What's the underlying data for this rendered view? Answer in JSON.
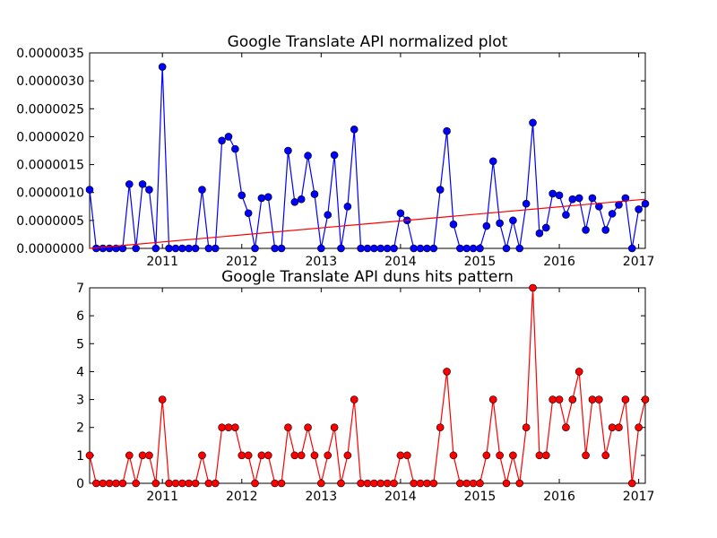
{
  "chart_data": [
    {
      "type": "line",
      "title": "Google Translate API normalized plot",
      "xlabel": "",
      "ylabel": "",
      "x_ticks": [
        "2011",
        "2012",
        "2013",
        "2014",
        "2015",
        "2016",
        "2017"
      ],
      "y_ticks": [
        "0.0000000",
        "0.0000005",
        "0.0000010",
        "0.0000015",
        "0.0000020",
        "0.0000025",
        "0.0000030",
        "0.0000035"
      ],
      "ylim": [
        0,
        3.5e-06
      ],
      "xlim": [
        "2010-02",
        "2017-02"
      ],
      "grid": false,
      "series": [
        {
          "color": "#0000ff",
          "marker": "circle",
          "x": [
            "2010-02",
            "2010-03",
            "2010-04",
            "2010-05",
            "2010-06",
            "2010-07",
            "2010-08",
            "2010-09",
            "2010-10",
            "2010-11",
            "2010-12",
            "2011-01",
            "2011-02",
            "2011-03",
            "2011-04",
            "2011-05",
            "2011-06",
            "2011-07",
            "2011-08",
            "2011-09",
            "2011-10",
            "2011-11",
            "2011-12",
            "2012-01",
            "2012-02",
            "2012-03",
            "2012-04",
            "2012-05",
            "2012-06",
            "2012-07",
            "2012-08",
            "2012-09",
            "2012-10",
            "2012-11",
            "2012-12",
            "2013-01",
            "2013-02",
            "2013-03",
            "2013-04",
            "2013-05",
            "2013-06",
            "2013-07",
            "2013-08",
            "2013-09",
            "2013-10",
            "2013-11",
            "2013-12",
            "2014-01",
            "2014-02",
            "2014-03",
            "2014-04",
            "2014-05",
            "2014-06",
            "2014-07",
            "2014-08",
            "2014-09",
            "2014-10",
            "2014-11",
            "2014-12",
            "2015-01",
            "2015-02",
            "2015-03",
            "2015-04",
            "2015-05",
            "2015-06",
            "2015-07",
            "2015-08",
            "2015-09",
            "2015-10",
            "2015-11",
            "2015-12",
            "2016-01",
            "2016-02",
            "2016-03",
            "2016-04",
            "2016-05",
            "2016-06",
            "2016-07",
            "2016-08",
            "2016-09",
            "2016-10",
            "2016-11",
            "2016-12",
            "2017-01",
            "2017-02"
          ],
          "y": [
            1.05e-06,
            0,
            0,
            0,
            0,
            0,
            1.15e-06,
            0,
            1.15e-06,
            1.05e-06,
            0,
            3.25e-06,
            0,
            0,
            0,
            0,
            0,
            1.05e-06,
            0,
            0,
            1.93e-06,
            2e-06,
            1.78e-06,
            9.5e-07,
            6.3e-07,
            0,
            9e-07,
            9.2e-07,
            0,
            0,
            1.75e-06,
            8.3e-07,
            8.8e-07,
            1.66e-06,
            9.7e-07,
            0,
            6e-07,
            1.67e-06,
            0,
            7.5e-07,
            2.13e-06,
            0,
            0,
            0,
            0,
            0,
            0,
            6.3e-07,
            5e-07,
            0,
            0,
            0,
            0,
            1.05e-06,
            2.1e-06,
            4.3e-07,
            0,
            0,
            0,
            0,
            4e-07,
            1.56e-06,
            4.5e-07,
            0,
            5e-07,
            0,
            8e-07,
            2.25e-06,
            2.7e-07,
            3.7e-07,
            9.8e-07,
            9.5e-07,
            6e-07,
            8.8e-07,
            9e-07,
            3.3e-07,
            9e-07,
            7.5e-07,
            3.3e-07,
            6.2e-07,
            7.8e-07,
            9e-07,
            0,
            7e-07,
            8e-07
          ]
        },
        {
          "color": "#ff0000",
          "type": "trend-line",
          "x": [
            "2010-02",
            "2017-02"
          ],
          "y": [
            0,
            8.8e-07
          ]
        }
      ]
    },
    {
      "type": "line",
      "title": "Google Translate API duns hits pattern",
      "xlabel": "",
      "ylabel": "",
      "x_ticks": [
        "2011",
        "2012",
        "2013",
        "2014",
        "2015",
        "2016",
        "2017"
      ],
      "y_ticks": [
        "0",
        "1",
        "2",
        "3",
        "4",
        "5",
        "6",
        "7"
      ],
      "ylim": [
        0,
        7
      ],
      "xlim": [
        "2010-02",
        "2017-02"
      ],
      "grid": false,
      "series": [
        {
          "color": "#ff0000",
          "marker": "circle",
          "x": [
            "2010-02",
            "2010-03",
            "2010-04",
            "2010-05",
            "2010-06",
            "2010-07",
            "2010-08",
            "2010-09",
            "2010-10",
            "2010-11",
            "2010-12",
            "2011-01",
            "2011-02",
            "2011-03",
            "2011-04",
            "2011-05",
            "2011-06",
            "2011-07",
            "2011-08",
            "2011-09",
            "2011-10",
            "2011-11",
            "2011-12",
            "2012-01",
            "2012-02",
            "2012-03",
            "2012-04",
            "2012-05",
            "2012-06",
            "2012-07",
            "2012-08",
            "2012-09",
            "2012-10",
            "2012-11",
            "2012-12",
            "2013-01",
            "2013-02",
            "2013-03",
            "2013-04",
            "2013-05",
            "2013-06",
            "2013-07",
            "2013-08",
            "2013-09",
            "2013-10",
            "2013-11",
            "2013-12",
            "2014-01",
            "2014-02",
            "2014-03",
            "2014-04",
            "2014-05",
            "2014-06",
            "2014-07",
            "2014-08",
            "2014-09",
            "2014-10",
            "2014-11",
            "2014-12",
            "2015-01",
            "2015-02",
            "2015-03",
            "2015-04",
            "2015-05",
            "2015-06",
            "2015-07",
            "2015-08",
            "2015-09",
            "2015-10",
            "2015-11",
            "2015-12",
            "2016-01",
            "2016-02",
            "2016-03",
            "2016-04",
            "2016-05",
            "2016-06",
            "2016-07",
            "2016-08",
            "2016-09",
            "2016-10",
            "2016-11",
            "2016-12",
            "2017-01",
            "2017-02"
          ],
          "y": [
            1,
            0,
            0,
            0,
            0,
            0,
            1,
            0,
            1,
            1,
            0,
            3,
            0,
            0,
            0,
            0,
            0,
            1,
            0,
            0,
            2,
            2,
            2,
            1,
            1,
            0,
            1,
            1,
            0,
            0,
            2,
            1,
            1,
            2,
            1,
            0,
            1,
            2,
            0,
            1,
            3,
            0,
            0,
            0,
            0,
            0,
            0,
            1,
            1,
            0,
            0,
            0,
            0,
            2,
            4,
            1,
            0,
            0,
            0,
            0,
            1,
            3,
            1,
            0,
            1,
            0,
            2,
            7,
            1,
            1,
            3,
            3,
            2,
            3,
            4,
            1,
            3,
            3,
            1,
            2,
            2,
            3,
            0,
            2,
            3
          ]
        }
      ]
    }
  ]
}
